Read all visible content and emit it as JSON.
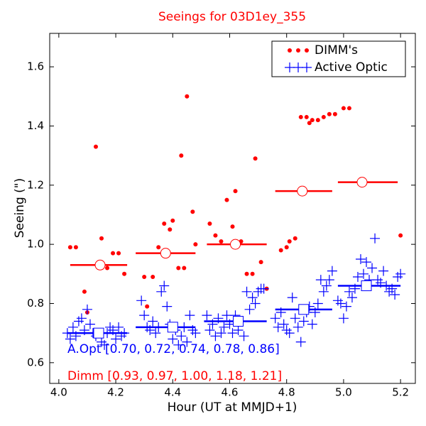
{
  "chart_data": {
    "type": "scatter",
    "title": "Seeings for 03D1ey_355",
    "title_color": "#ff0000",
    "x_label": "Hour (UT at MMJD+1)",
    "y_label": "Seeing (\")",
    "xlim": [
      3.968,
      5.252
    ],
    "ylim": [
      0.53,
      1.713
    ],
    "xticks": [
      {
        "value": 4,
        "label": "4.0"
      },
      4.2,
      4.4,
      4.6,
      4.8,
      {
        "value": 5,
        "label": "5.0"
      },
      5.2
    ],
    "yticks": [
      0.6,
      0.8,
      {
        "value": 1,
        "label": "1.0"
      },
      1.2,
      1.4,
      1.6
    ],
    "grid": false,
    "legend": "upper right",
    "series": [
      {
        "name": "DIMM's",
        "color": "#ff0000",
        "marker": "dot",
        "median_marker": "circle",
        "x": [
          4.04,
          4.06,
          4.09,
          4.1,
          4.13,
          4.15,
          4.17,
          4.19,
          4.21,
          4.23,
          4.3,
          4.31,
          4.33,
          4.35,
          4.37,
          4.39,
          4.4,
          4.42,
          4.44,
          4.43,
          4.45,
          4.47,
          4.48,
          4.53,
          4.55,
          4.57,
          4.59,
          4.61,
          4.62,
          4.64,
          4.66,
          4.68,
          4.69,
          4.71,
          4.73,
          4.78,
          4.8,
          4.81,
          4.83,
          4.85,
          4.87,
          4.88,
          4.89,
          4.91,
          4.93,
          4.95,
          4.97,
          5.0,
          5.02,
          5.2
        ],
        "values": [
          0.99,
          0.99,
          0.84,
          0.77,
          1.33,
          1.02,
          0.92,
          0.97,
          0.97,
          0.9,
          0.89,
          0.79,
          0.89,
          0.99,
          1.07,
          1.05,
          1.08,
          0.92,
          0.92,
          1.3,
          1.5,
          1.11,
          1.0,
          1.07,
          1.03,
          1.01,
          1.15,
          1.06,
          1.18,
          1.01,
          0.9,
          0.9,
          1.29,
          0.94,
          0.85,
          0.98,
          0.99,
          1.01,
          1.02,
          1.43,
          1.43,
          1.41,
          1.42,
          1.42,
          1.43,
          1.44,
          1.44,
          1.46,
          1.46,
          1.03
        ],
        "medians": [
          {
            "x0": 4.04,
            "x1": 4.24,
            "center": 4.145,
            "value": 0.93
          },
          {
            "x0": 4.27,
            "x1": 4.48,
            "center": 4.375,
            "value": 0.97
          },
          {
            "x0": 4.52,
            "x1": 4.73,
            "center": 4.62,
            "value": 1.0
          },
          {
            "x0": 4.76,
            "x1": 4.96,
            "center": 4.855,
            "value": 1.18
          },
          {
            "x0": 4.98,
            "x1": 5.19,
            "center": 5.065,
            "value": 1.21
          }
        ]
      },
      {
        "name": "Active Optic",
        "color": "#0000ff",
        "marker": "plus",
        "median_marker": "square",
        "x": [
          4.03,
          4.04,
          4.05,
          4.06,
          4.07,
          4.08,
          4.09,
          4.1,
          4.11,
          4.12,
          4.13,
          4.15,
          4.16,
          4.17,
          4.18,
          4.19,
          4.2,
          4.21,
          4.22,
          4.23,
          4.29,
          4.3,
          4.31,
          4.32,
          4.33,
          4.34,
          4.35,
          4.36,
          4.37,
          4.38,
          4.39,
          4.4,
          4.41,
          4.42,
          4.43,
          4.44,
          4.45,
          4.46,
          4.47,
          4.48,
          4.52,
          4.53,
          4.54,
          4.55,
          4.56,
          4.57,
          4.58,
          4.59,
          4.6,
          4.61,
          4.62,
          4.63,
          4.64,
          4.65,
          4.66,
          4.67,
          4.68,
          4.69,
          4.7,
          4.71,
          4.72,
          4.76,
          4.77,
          4.78,
          4.79,
          4.8,
          4.81,
          4.82,
          4.83,
          4.84,
          4.85,
          4.86,
          4.87,
          4.88,
          4.89,
          4.9,
          4.91,
          4.92,
          4.93,
          4.94,
          4.95,
          4.96,
          4.98,
          4.99,
          5.0,
          5.01,
          5.02,
          5.03,
          5.04,
          5.05,
          5.06,
          5.07,
          5.08,
          5.09,
          5.1,
          5.11,
          5.12,
          5.13,
          5.14,
          5.15,
          5.16,
          5.17,
          5.18,
          5.19,
          5.2
        ],
        "values": [
          0.7,
          0.68,
          0.72,
          0.69,
          0.74,
          0.75,
          0.71,
          0.78,
          0.73,
          0.7,
          0.69,
          0.67,
          0.66,
          0.7,
          0.72,
          0.71,
          0.68,
          0.72,
          0.69,
          0.7,
          0.81,
          0.76,
          0.72,
          0.71,
          0.74,
          0.7,
          0.72,
          0.84,
          0.86,
          0.79,
          0.73,
          0.68,
          0.71,
          0.66,
          0.69,
          0.72,
          0.67,
          0.76,
          0.71,
          0.7,
          0.76,
          0.71,
          0.73,
          0.69,
          0.75,
          0.7,
          0.72,
          0.76,
          0.73,
          0.7,
          0.76,
          0.71,
          0.74,
          0.69,
          0.84,
          0.78,
          0.82,
          0.8,
          0.84,
          0.85,
          0.85,
          0.75,
          0.72,
          0.77,
          0.73,
          0.71,
          0.7,
          0.82,
          0.75,
          0.72,
          0.67,
          0.74,
          0.77,
          0.79,
          0.73,
          0.77,
          0.8,
          0.88,
          0.84,
          0.86,
          0.88,
          0.91,
          0.81,
          0.8,
          0.75,
          0.79,
          0.84,
          0.82,
          0.85,
          0.89,
          0.95,
          0.9,
          0.94,
          0.88,
          0.92,
          1.02,
          0.88,
          0.87,
          0.91,
          0.86,
          0.84,
          0.85,
          0.83,
          0.89,
          0.9
        ],
        "medians": [
          {
            "x0": 4.03,
            "x1": 4.24,
            "center": 4.14,
            "value": 0.7
          },
          {
            "x0": 4.27,
            "x1": 4.48,
            "center": 4.4,
            "value": 0.72
          },
          {
            "x0": 4.51,
            "x1": 4.73,
            "center": 4.63,
            "value": 0.74
          },
          {
            "x0": 4.76,
            "x1": 4.96,
            "center": 4.86,
            "value": 0.78
          },
          {
            "x0": 4.98,
            "x1": 5.2,
            "center": 5.08,
            "value": 0.86
          }
        ]
      }
    ],
    "annotations": [
      {
        "text": "A.Opt [0.70, 0.72, 0.74, 0.78, 0.86]",
        "color": "#0000ff"
      },
      {
        "text": "Dimm [0.93, 0.97, 1.00, 1.18, 1.21]",
        "color": "#ff0000"
      }
    ]
  }
}
